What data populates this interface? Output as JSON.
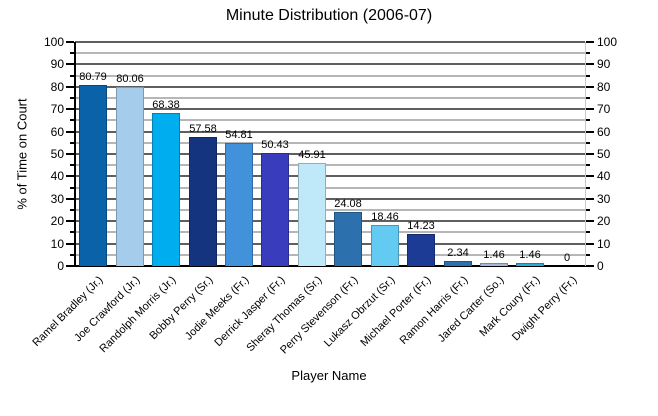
{
  "chart_data": {
    "type": "bar",
    "title": "Minute Distribution (2006-07)",
    "xlabel": "Player Name",
    "ylabel": "% of Time on Court",
    "ylim": [
      0,
      100
    ],
    "ytick_major_step": 10,
    "ytick_minor_step": 5,
    "grid": true,
    "legend": "none",
    "ytick_labels": [
      "0",
      "10",
      "20",
      "30",
      "40",
      "50",
      "60",
      "70",
      "80",
      "90",
      "100"
    ],
    "categories": [
      "Ramel Bradley (Jr.)",
      "Joe Crawford (Jr.)",
      "Randolph Morris (Jr.)",
      "Bobby Perry (Sr.)",
      "Jodie Meeks (Fr.)",
      "Derrick Jasper (Fr.)",
      "Sheray Thomas (Sr.)",
      "Perry Stevenson (Fr.)",
      "Lukasz Obrzut (Sr.)",
      "Michael Porter (Fr.)",
      "Ramon Harris (Fr.)",
      "Jared Carter (So.)",
      "Mark Coury (Fr.)",
      "Dwight Perry (Fr.)"
    ],
    "values": [
      80.79,
      80.06,
      68.38,
      57.58,
      54.81,
      50.43,
      45.91,
      24.08,
      18.46,
      14.23,
      2.34,
      1.46,
      1.46,
      0
    ],
    "bar_colors": [
      "#0A62A9",
      "#A5CDEB",
      "#00AEEF",
      "#15347F",
      "#4291DB",
      "#3A3CBE",
      "#BFE9F8",
      "#2C71AD",
      "#63CAF2",
      "#1B3B95",
      "#2C71AD",
      "#A2B8D8",
      "#2FA9DA",
      null
    ]
  }
}
